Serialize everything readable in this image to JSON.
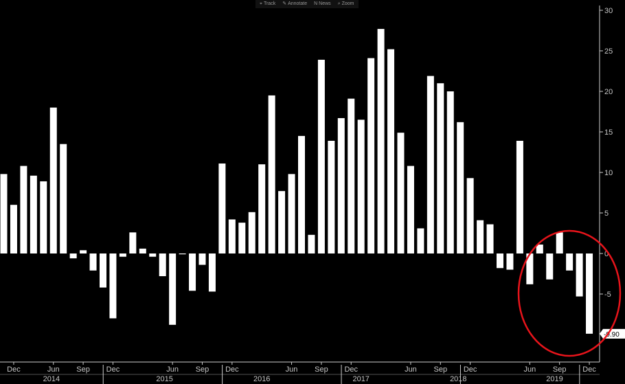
{
  "toolbar": {
    "track": "Track",
    "annotate": "Annotate",
    "news": "News",
    "zoom": "Zoom"
  },
  "chart_data": {
    "type": "bar",
    "ylim": [
      -10,
      30
    ],
    "yticks": [
      -5,
      0,
      5,
      10,
      15,
      20,
      25,
      30
    ],
    "grid": false,
    "values": [
      9.8,
      6.0,
      10.8,
      9.6,
      8.9,
      18.0,
      13.5,
      -0.6,
      0.4,
      -2.1,
      -4.2,
      -8.0,
      -0.4,
      2.6,
      0.6,
      -0.4,
      -2.8,
      -8.8,
      -0.1,
      -4.6,
      -1.4,
      -4.7,
      11.1,
      4.2,
      3.8,
      5.1,
      11.0,
      19.5,
      7.7,
      9.8,
      14.5,
      2.3,
      23.9,
      13.9,
      16.7,
      19.1,
      16.5,
      24.1,
      27.7,
      25.2,
      14.9,
      10.8,
      3.1,
      21.9,
      21.0,
      20.0,
      16.2,
      9.3,
      4.1,
      3.6,
      -1.8,
      -2.0,
      13.9,
      -3.8,
      1.1,
      -3.2,
      2.6,
      -2.1,
      -5.3,
      -9.9
    ],
    "month_ticks": [
      {
        "label": "Dec",
        "index": 1
      },
      {
        "label": "Jun",
        "index": 5
      },
      {
        "label": "Sep",
        "index": 8
      },
      {
        "label": "Dec",
        "index": 11
      },
      {
        "label": "Jun",
        "index": 17
      },
      {
        "label": "Sep",
        "index": 20
      },
      {
        "label": "Dec",
        "index": 23
      },
      {
        "label": "Jun",
        "index": 29
      },
      {
        "label": "Sep",
        "index": 32
      },
      {
        "label": "Dec",
        "index": 35
      },
      {
        "label": "Jun",
        "index": 41
      },
      {
        "label": "Sep",
        "index": 44
      },
      {
        "label": "Dec",
        "index": 47
      },
      {
        "label": "Jun",
        "index": 53
      },
      {
        "label": "Sep",
        "index": 56
      },
      {
        "label": "Dec",
        "index": 59
      },
      {
        "label": "Jun",
        "index": 65
      },
      {
        "label": "Sep",
        "index": 68
      }
    ],
    "year_labels": [
      {
        "label": "2014",
        "index": 4.8
      },
      {
        "label": "2015",
        "index": 16.2
      },
      {
        "label": "2016",
        "index": 26.0
      },
      {
        "label": "2017",
        "index": 36.0
      },
      {
        "label": "2018",
        "index": 45.8
      },
      {
        "label": "2019",
        "index": 55.5
      }
    ],
    "last_value_label": "-9.90",
    "annotation": "red ellipse around last bars (2019)",
    "bar_color": "#ffffff",
    "highlight_color": "#e8141b"
  }
}
